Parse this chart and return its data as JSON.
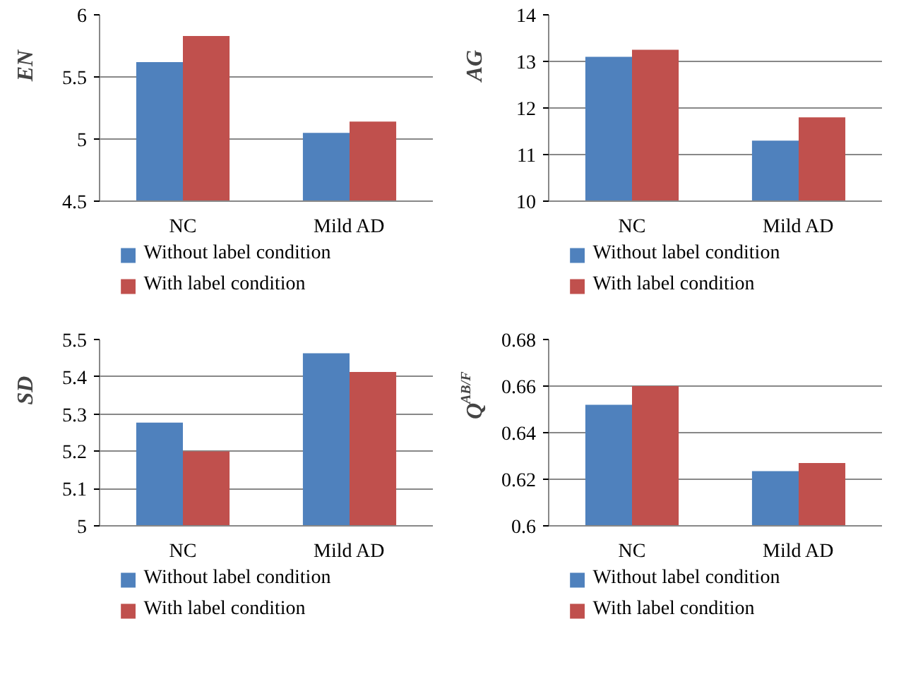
{
  "chart_data": [
    {
      "type": "bar",
      "ylabel": "EN",
      "categories": [
        "NC",
        "Mild AD"
      ],
      "ylim": [
        4.5,
        6
      ],
      "yticks": [
        4.5,
        5,
        5.5,
        6
      ],
      "grid": "y",
      "legend": "bottom",
      "series": [
        {
          "name": "Without label condition",
          "color": "#4f81bd",
          "values": [
            5.62,
            5.05
          ]
        },
        {
          "name": "With label condition",
          "color": "#c0504d",
          "values": [
            5.83,
            5.14
          ]
        }
      ]
    },
    {
      "type": "bar",
      "ylabel": "AG",
      "categories": [
        "NC",
        "Mild AD"
      ],
      "ylim": [
        10,
        14
      ],
      "yticks": [
        10,
        11,
        12,
        13,
        14
      ],
      "grid": "y",
      "legend": "bottom",
      "series": [
        {
          "name": "Without label condition",
          "color": "#4f81bd",
          "values": [
            13.1,
            11.3
          ]
        },
        {
          "name": "With label condition",
          "color": "#c0504d",
          "values": [
            13.25,
            11.8
          ]
        }
      ]
    },
    {
      "type": "bar",
      "ylabel": "SD",
      "categories": [
        "NC",
        "Mild AD"
      ],
      "ylim": [
        5,
        5.5
      ],
      "yticks": [
        5,
        5.1,
        5.2,
        5.3,
        5.4,
        5.5
      ],
      "grid": "y",
      "legend": "bottom",
      "series": [
        {
          "name": "Without label condition",
          "color": "#4f81bd",
          "values": [
            5.277,
            5.463
          ]
        },
        {
          "name": "With label condition",
          "color": "#c0504d",
          "values": [
            5.2,
            5.413
          ]
        }
      ]
    },
    {
      "type": "bar",
      "ylabel": "Q$^{AB/F}$",
      "categories": [
        "NC",
        "Mild AD"
      ],
      "ylim": [
        0.6,
        0.68
      ],
      "yticks": [
        0.6,
        0.62,
        0.64,
        0.66,
        0.68
      ],
      "grid": "y",
      "legend": "bottom",
      "series": [
        {
          "name": "Without label condition",
          "color": "#4f81bd",
          "values": [
            0.652,
            0.6235
          ]
        },
        {
          "name": "With label condition",
          "color": "#c0504d",
          "values": [
            0.66,
            0.627
          ]
        }
      ]
    }
  ]
}
